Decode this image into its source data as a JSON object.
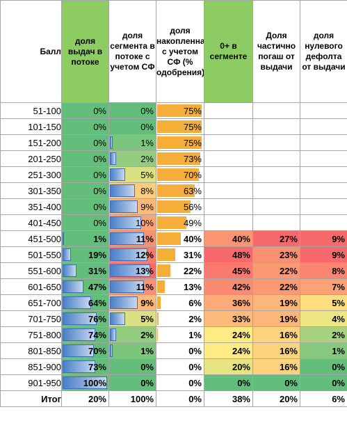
{
  "colors": {
    "header_green": "#8dcb63",
    "grad_red": "#f8696b",
    "grad_yellow": "#ffeb84",
    "grad_green": "#63be7b",
    "bar_blue": "#4a7fc8",
    "bar_orange": "#f5ae3a"
  },
  "headers": [
    "Балл",
    "доля выдач в потоке",
    "доля сегмента в потоке с учетом СФ",
    "доля накопленная с учетом СФ (% одобрения)",
    "0+ в сегменте",
    "Доля частично погаш от выдачи",
    "доля нулевого дефолта от выдачи"
  ],
  "rows": [
    {
      "label": "51-100",
      "col1": "0%",
      "col2": "0%",
      "col3": "75%",
      "col4": "",
      "col5": "",
      "col6": ""
    },
    {
      "label": "101-150",
      "col1": "0%",
      "col2": "0%",
      "col3": "75%",
      "col4": "",
      "col5": "",
      "col6": ""
    },
    {
      "label": "151-200",
      "col1": "0%",
      "col2": "1%",
      "col3": "75%",
      "col4": "",
      "col5": "",
      "col6": ""
    },
    {
      "label": "201-250",
      "col1": "0%",
      "col2": "2%",
      "col3": "73%",
      "col4": "",
      "col5": "",
      "col6": ""
    },
    {
      "label": "251-300",
      "col1": "0%",
      "col2": "5%",
      "col3": "70%",
      "col4": "",
      "col5": "",
      "col6": ""
    },
    {
      "label": "301-350",
      "col1": "0%",
      "col2": "8%",
      "col3": "63%",
      "col4": "",
      "col5": "",
      "col6": ""
    },
    {
      "label": "351-400",
      "col1": "0%",
      "col2": "9%",
      "col3": "56%",
      "col4": "",
      "col5": "",
      "col6": ""
    },
    {
      "label": "401-450",
      "col1": "0%",
      "col2": "10%",
      "col3": "49%",
      "col4": "",
      "col5": "",
      "col6": ""
    },
    {
      "label": "451-500",
      "col1": "1%",
      "col2": "11%",
      "col3": "40%",
      "col4": "40%",
      "col5": "27%",
      "col6": "9%"
    },
    {
      "label": "501-550",
      "col1": "19%",
      "col2": "12%",
      "col3": "31%",
      "col4": "48%",
      "col5": "23%",
      "col6": "9%"
    },
    {
      "label": "551-600",
      "col1": "31%",
      "col2": "13%",
      "col3": "22%",
      "col4": "45%",
      "col5": "22%",
      "col6": "8%"
    },
    {
      "label": "601-650",
      "col1": "47%",
      "col2": "11%",
      "col3": "13%",
      "col4": "42%",
      "col5": "22%",
      "col6": "7%"
    },
    {
      "label": "651-700",
      "col1": "64%",
      "col2": "9%",
      "col3": "6%",
      "col4": "36%",
      "col5": "19%",
      "col6": "5%"
    },
    {
      "label": "701-750",
      "col1": "76%",
      "col2": "5%",
      "col3": "2%",
      "col4": "33%",
      "col5": "19%",
      "col6": "4%"
    },
    {
      "label": "751-800",
      "col1": "74%",
      "col2": "2%",
      "col3": "1%",
      "col4": "24%",
      "col5": "16%",
      "col6": "2%"
    },
    {
      "label": "801-850",
      "col1": "70%",
      "col2": "1%",
      "col3": "0%",
      "col4": "24%",
      "col5": "16%",
      "col6": "1%"
    },
    {
      "label": "851-900",
      "col1": "73%",
      "col2": "0%",
      "col3": "0%",
      "col4": "20%",
      "col5": "16%",
      "col6": "0%"
    },
    {
      "label": "901-950",
      "col1": "100%",
      "col2": "0%",
      "col3": "0%",
      "col4": "0%",
      "col5": "0%",
      "col6": "0%"
    }
  ],
  "total": {
    "label": "Итог",
    "col1": "20%",
    "col2": "100%",
    "col3": "0%",
    "col4": "38%",
    "col5": "20%",
    "col6": "6%"
  }
}
